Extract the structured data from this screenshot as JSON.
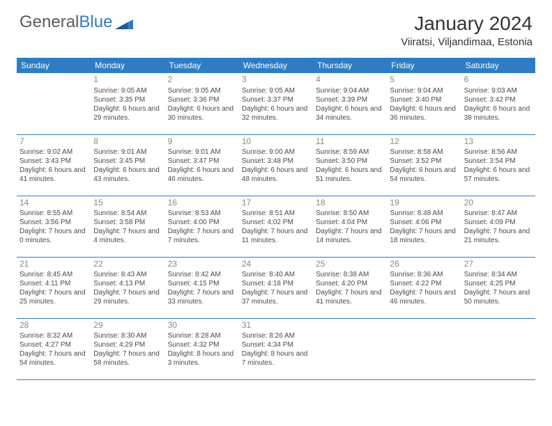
{
  "logo": {
    "text1": "General",
    "text2": "Blue"
  },
  "title": "January 2024",
  "location": "Viiratsi, Viljandimaa, Estonia",
  "headers": [
    "Sunday",
    "Monday",
    "Tuesday",
    "Wednesday",
    "Thursday",
    "Friday",
    "Saturday"
  ],
  "colors": {
    "header_bg": "#2d7dc4",
    "header_fg": "#ffffff",
    "row_border": "#2d7dc4",
    "daynum": "#888888",
    "text": "#4a4a4a",
    "logo_gray": "#5a5a5a",
    "logo_blue": "#2d7dc4",
    "bg": "#ffffff"
  },
  "weeks": [
    [
      null,
      {
        "d": "1",
        "sr": "9:05 AM",
        "ss": "3:35 PM",
        "dl": "6 hours and 29 minutes."
      },
      {
        "d": "2",
        "sr": "9:05 AM",
        "ss": "3:36 PM",
        "dl": "6 hours and 30 minutes."
      },
      {
        "d": "3",
        "sr": "9:05 AM",
        "ss": "3:37 PM",
        "dl": "6 hours and 32 minutes."
      },
      {
        "d": "4",
        "sr": "9:04 AM",
        "ss": "3:39 PM",
        "dl": "6 hours and 34 minutes."
      },
      {
        "d": "5",
        "sr": "9:04 AM",
        "ss": "3:40 PM",
        "dl": "6 hours and 36 minutes."
      },
      {
        "d": "6",
        "sr": "9:03 AM",
        "ss": "3:42 PM",
        "dl": "6 hours and 38 minutes."
      }
    ],
    [
      {
        "d": "7",
        "sr": "9:02 AM",
        "ss": "3:43 PM",
        "dl": "6 hours and 41 minutes."
      },
      {
        "d": "8",
        "sr": "9:01 AM",
        "ss": "3:45 PM",
        "dl": "6 hours and 43 minutes."
      },
      {
        "d": "9",
        "sr": "9:01 AM",
        "ss": "3:47 PM",
        "dl": "6 hours and 46 minutes."
      },
      {
        "d": "10",
        "sr": "9:00 AM",
        "ss": "3:48 PM",
        "dl": "6 hours and 48 minutes."
      },
      {
        "d": "11",
        "sr": "8:59 AM",
        "ss": "3:50 PM",
        "dl": "6 hours and 51 minutes."
      },
      {
        "d": "12",
        "sr": "8:58 AM",
        "ss": "3:52 PM",
        "dl": "6 hours and 54 minutes."
      },
      {
        "d": "13",
        "sr": "8:56 AM",
        "ss": "3:54 PM",
        "dl": "6 hours and 57 minutes."
      }
    ],
    [
      {
        "d": "14",
        "sr": "8:55 AM",
        "ss": "3:56 PM",
        "dl": "7 hours and 0 minutes."
      },
      {
        "d": "15",
        "sr": "8:54 AM",
        "ss": "3:58 PM",
        "dl": "7 hours and 4 minutes."
      },
      {
        "d": "16",
        "sr": "8:53 AM",
        "ss": "4:00 PM",
        "dl": "7 hours and 7 minutes."
      },
      {
        "d": "17",
        "sr": "8:51 AM",
        "ss": "4:02 PM",
        "dl": "7 hours and 11 minutes."
      },
      {
        "d": "18",
        "sr": "8:50 AM",
        "ss": "4:04 PM",
        "dl": "7 hours and 14 minutes."
      },
      {
        "d": "19",
        "sr": "8:48 AM",
        "ss": "4:06 PM",
        "dl": "7 hours and 18 minutes."
      },
      {
        "d": "20",
        "sr": "8:47 AM",
        "ss": "4:09 PM",
        "dl": "7 hours and 21 minutes."
      }
    ],
    [
      {
        "d": "21",
        "sr": "8:45 AM",
        "ss": "4:11 PM",
        "dl": "7 hours and 25 minutes."
      },
      {
        "d": "22",
        "sr": "8:43 AM",
        "ss": "4:13 PM",
        "dl": "7 hours and 29 minutes."
      },
      {
        "d": "23",
        "sr": "8:42 AM",
        "ss": "4:15 PM",
        "dl": "7 hours and 33 minutes."
      },
      {
        "d": "24",
        "sr": "8:40 AM",
        "ss": "4:18 PM",
        "dl": "7 hours and 37 minutes."
      },
      {
        "d": "25",
        "sr": "8:38 AM",
        "ss": "4:20 PM",
        "dl": "7 hours and 41 minutes."
      },
      {
        "d": "26",
        "sr": "8:36 AM",
        "ss": "4:22 PM",
        "dl": "7 hours and 46 minutes."
      },
      {
        "d": "27",
        "sr": "8:34 AM",
        "ss": "4:25 PM",
        "dl": "7 hours and 50 minutes."
      }
    ],
    [
      {
        "d": "28",
        "sr": "8:32 AM",
        "ss": "4:27 PM",
        "dl": "7 hours and 54 minutes."
      },
      {
        "d": "29",
        "sr": "8:30 AM",
        "ss": "4:29 PM",
        "dl": "7 hours and 58 minutes."
      },
      {
        "d": "30",
        "sr": "8:28 AM",
        "ss": "4:32 PM",
        "dl": "8 hours and 3 minutes."
      },
      {
        "d": "31",
        "sr": "8:26 AM",
        "ss": "4:34 PM",
        "dl": "8 hours and 7 minutes."
      },
      null,
      null,
      null
    ]
  ],
  "labels": {
    "sunrise": "Sunrise:",
    "sunset": "Sunset:",
    "daylight": "Daylight:"
  }
}
